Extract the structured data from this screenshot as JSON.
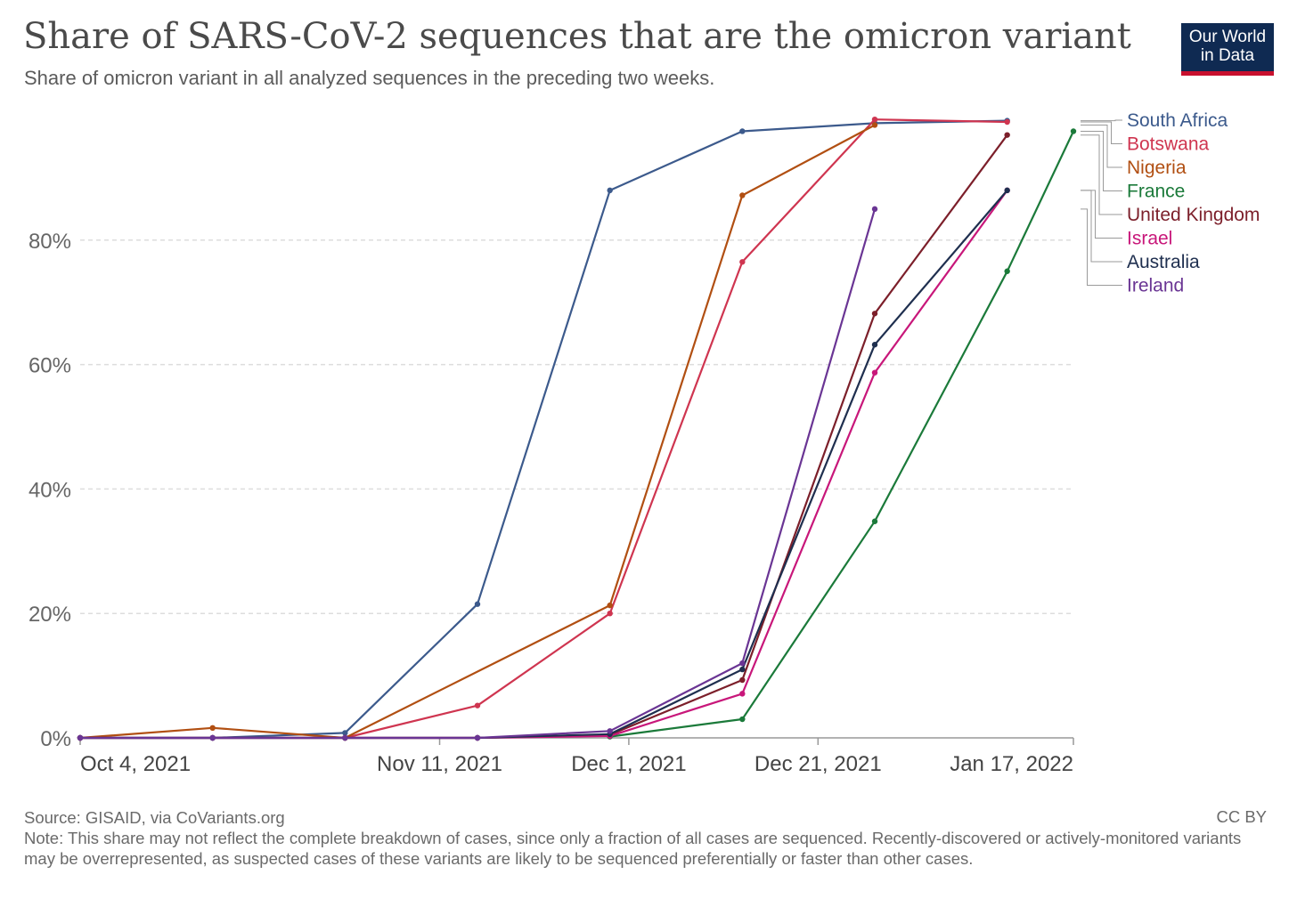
{
  "header": {
    "title": "Share of SARS-CoV-2 sequences that are the omicron variant",
    "subtitle": "Share of omicron variant in all analyzed sequences in the preceding two weeks.",
    "logo_line1": "Our World",
    "logo_line2": "in Data"
  },
  "footer": {
    "source": "Source: GISAID, via CoVariants.org",
    "note": "Note: This share may not reflect the complete breakdown of cases, since only a fraction of all cases are sequenced. Recently-discovered or actively-monitored variants may be overrepresented, as suspected cases of these variants are likely to be sequenced preferentially or faster than other cases.",
    "license": "CC BY"
  },
  "chart_data": {
    "type": "line",
    "title": "Share of SARS-CoV-2 sequences that are the omicron variant",
    "ylabel": "",
    "xlabel": "",
    "ylim": [
      0,
      100
    ],
    "yticks": [
      0,
      20,
      40,
      60,
      80
    ],
    "ytick_labels": [
      "0%",
      "20%",
      "40%",
      "60%",
      "80%"
    ],
    "xlim": [
      "2021-10-04",
      "2022-01-17"
    ],
    "xticks": [
      {
        "date": "2021-10-04",
        "label": "Oct 4, 2021",
        "align": "start"
      },
      {
        "date": "2021-11-11",
        "label": "Nov 11, 2021",
        "align": "middle"
      },
      {
        "date": "2021-12-01",
        "label": "Dec 1, 2021",
        "align": "middle"
      },
      {
        "date": "2021-12-21",
        "label": "Dec 21, 2021",
        "align": "middle"
      },
      {
        "date": "2022-01-17",
        "label": "Jan 17, 2022",
        "align": "end"
      }
    ],
    "grid": true,
    "legend_position": "right",
    "series": [
      {
        "name": "South Africa",
        "color": "#3c5a8c",
        "points": [
          [
            "2021-10-04",
            0
          ],
          [
            "2021-10-18",
            0
          ],
          [
            "2021-11-01",
            0.8
          ],
          [
            "2021-11-15",
            21.5
          ],
          [
            "2021-11-29",
            88
          ],
          [
            "2021-12-13",
            97.5
          ],
          [
            "2021-12-27",
            98.8
          ],
          [
            "2022-01-10",
            99.2
          ]
        ]
      },
      {
        "name": "Botswana",
        "color": "#cf3550",
        "points": [
          [
            "2021-11-01",
            0
          ],
          [
            "2021-11-15",
            5.2
          ],
          [
            "2021-11-29",
            20
          ],
          [
            "2021-12-13",
            76.5
          ],
          [
            "2021-12-27",
            99.4
          ],
          [
            "2022-01-10",
            99
          ]
        ]
      },
      {
        "name": "Nigeria",
        "color": "#b14f12",
        "points": [
          [
            "2021-10-04",
            0
          ],
          [
            "2021-10-18",
            1.6
          ],
          [
            "2021-11-01",
            0
          ],
          [
            "2021-11-29",
            21.3
          ],
          [
            "2021-12-13",
            87.2
          ],
          [
            "2021-12-27",
            98.5
          ]
        ]
      },
      {
        "name": "France",
        "color": "#1b7a3a",
        "points": [
          [
            "2021-11-29",
            0.2
          ],
          [
            "2021-12-13",
            3
          ],
          [
            "2021-12-27",
            34.8
          ],
          [
            "2022-01-10",
            75
          ],
          [
            "2022-01-17",
            97.5
          ]
        ]
      },
      {
        "name": "United Kingdom",
        "color": "#7c1f2a",
        "points": [
          [
            "2021-10-04",
            0
          ],
          [
            "2021-10-18",
            0
          ],
          [
            "2021-11-01",
            0
          ],
          [
            "2021-11-15",
            0
          ],
          [
            "2021-11-29",
            0.5
          ],
          [
            "2021-12-13",
            9.3
          ],
          [
            "2021-12-27",
            68.2
          ],
          [
            "2022-01-10",
            96.9
          ]
        ]
      },
      {
        "name": "Israel",
        "color": "#c8177a",
        "points": [
          [
            "2021-10-04",
            0
          ],
          [
            "2021-10-18",
            0
          ],
          [
            "2021-11-01",
            0
          ],
          [
            "2021-11-15",
            0
          ],
          [
            "2021-11-29",
            0.3
          ],
          [
            "2021-12-13",
            7.1
          ],
          [
            "2021-12-27",
            58.7
          ],
          [
            "2022-01-10",
            88
          ]
        ]
      },
      {
        "name": "Australia",
        "color": "#1f2f4f",
        "points": [
          [
            "2021-10-04",
            0
          ],
          [
            "2021-10-18",
            0
          ],
          [
            "2021-11-01",
            0
          ],
          [
            "2021-11-15",
            0
          ],
          [
            "2021-11-29",
            0.6
          ],
          [
            "2021-12-13",
            11
          ],
          [
            "2021-12-27",
            63.2
          ],
          [
            "2022-01-10",
            88
          ]
        ]
      },
      {
        "name": "Ireland",
        "color": "#6a3594",
        "points": [
          [
            "2021-10-04",
            0
          ],
          [
            "2021-10-18",
            0
          ],
          [
            "2021-11-01",
            0
          ],
          [
            "2021-11-15",
            0
          ],
          [
            "2021-11-29",
            1.1
          ],
          [
            "2021-12-13",
            12
          ],
          [
            "2021-12-27",
            85
          ]
        ]
      }
    ]
  }
}
